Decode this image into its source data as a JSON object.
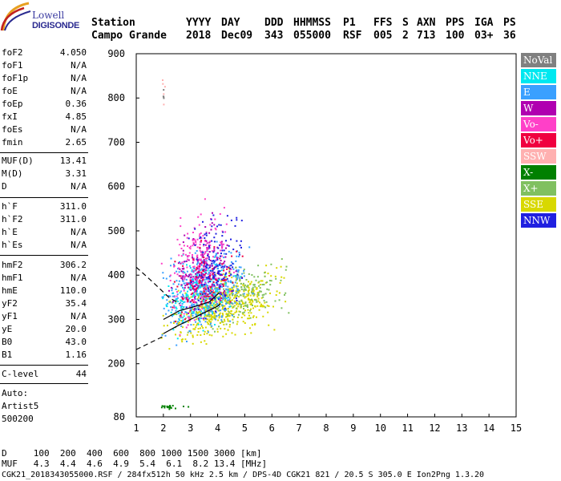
{
  "logo": {
    "line1": "Lowell",
    "line2": "DIGISONDE"
  },
  "header": {
    "line1": [
      "Station",
      "YYYY",
      "DAY",
      "DDD",
      "HHMMSS",
      "P1",
      "FFS",
      "S",
      "AXN",
      "PPS",
      "IGA",
      "PS"
    ],
    "line2": [
      "Campo Grande",
      "2018",
      "Dec09",
      "343",
      "055000",
      "RSF",
      "005",
      "2",
      "713",
      "100",
      "03+",
      "36"
    ]
  },
  "params": {
    "block1": [
      {
        "label": "foF2",
        "value": "4.050"
      },
      {
        "label": "foF1",
        "value": "N/A"
      },
      {
        "label": "foF1p",
        "value": "N/A"
      },
      {
        "label": "foE",
        "value": "N/A"
      },
      {
        "label": "foEp",
        "value": "0.36"
      },
      {
        "label": "fxI",
        "value": "4.85"
      },
      {
        "label": "foEs",
        "value": "N/A"
      },
      {
        "label": "fmin",
        "value": "2.65"
      }
    ],
    "block2": [
      {
        "label": "MUF(D)",
        "value": "13.41"
      },
      {
        "label": "M(D)",
        "value": "3.31"
      },
      {
        "label": "D",
        "value": "N/A"
      }
    ],
    "block3": [
      {
        "label": "h`F",
        "value": "311.0"
      },
      {
        "label": "h`F2",
        "value": "311.0"
      },
      {
        "label": "h`E",
        "value": "N/A"
      },
      {
        "label": "h`Es",
        "value": "N/A"
      }
    ],
    "block4": [
      {
        "label": "hmF2",
        "value": "306.2"
      },
      {
        "label": "hmF1",
        "value": "N/A"
      },
      {
        "label": "hmE",
        "value": "110.0"
      },
      {
        "label": "yF2",
        "value": "35.4"
      },
      {
        "label": "yF1",
        "value": "N/A"
      },
      {
        "label": "yE",
        "value": "20.0"
      },
      {
        "label": "B0",
        "value": "43.0"
      },
      {
        "label": "B1",
        "value": "1.16"
      }
    ],
    "clevel": {
      "label": "C-level",
      "value": "44"
    },
    "scaler": [
      "Auto:",
      "Artist5",
      "500200"
    ]
  },
  "legend": [
    {
      "label": "NoVal",
      "bg": "#808080",
      "fg": "#ffffff"
    },
    {
      "label": "NNE",
      "bg": "#00e8f0",
      "fg": "#ffffff"
    },
    {
      "label": "E",
      "bg": "#3aa0ff",
      "fg": "#ffffff"
    },
    {
      "label": "W",
      "bg": "#b000b0",
      "fg": "#ffffff"
    },
    {
      "label": "Vo-",
      "bg": "#ff40c8",
      "fg": "#ffffff"
    },
    {
      "label": "Vo+",
      "bg": "#f00040",
      "fg": "#ffffff"
    },
    {
      "label": "SSW",
      "bg": "#ffb0b0",
      "fg": "#ffffff"
    },
    {
      "label": "X-",
      "bg": "#008000",
      "fg": "#ffffff"
    },
    {
      "label": "X+",
      "bg": "#80c060",
      "fg": "#ffffff"
    },
    {
      "label": "SSE",
      "bg": "#d8d800",
      "fg": "#ffffff"
    },
    {
      "label": "NNW",
      "bg": "#2020e0",
      "fg": "#ffffff"
    }
  ],
  "bottom": {
    "d_row": "D     100  200  400  600  800 1000 1500 3000 [km]",
    "muf_row": "MUF   4.3  4.4  4.6  4.9  5.4  6.1  8.2 13.4 [MHz]",
    "file_row": "CGK21_2018343055000.RSF / 284fx512h 50 kHz 2.5 km / DPS-4D CGK21 821 / 20.5 S 305.0 E Ion2Png 1.3.20"
  },
  "chart_data": {
    "type": "scatter",
    "xlim": [
      1,
      15
    ],
    "ylim": [
      80,
      900
    ],
    "xticks": [
      1,
      2,
      3,
      4,
      5,
      6,
      7,
      8,
      9,
      10,
      11,
      12,
      13,
      14,
      15
    ],
    "yticks": [
      80,
      200,
      300,
      400,
      500,
      600,
      700,
      800,
      900
    ],
    "clusters": [
      {
        "name": "NoVal",
        "color": "#808080",
        "cx": 1.95,
        "cy": 809,
        "sx": 0.03,
        "sy": 15,
        "n": 4
      },
      {
        "name": "SSW",
        "color": "#ffb0b0",
        "cx": 2.0,
        "cy": 820,
        "sx": 0.04,
        "sy": 20,
        "n": 5
      },
      {
        "name": "SSE",
        "color": "#d8d800",
        "cx": 4.2,
        "cy": 330,
        "sx": 0.9,
        "sy": 30,
        "n": 520
      },
      {
        "name": "X+",
        "color": "#80c060",
        "cx": 4.6,
        "cy": 355,
        "sx": 0.9,
        "sy": 30,
        "n": 220
      },
      {
        "name": "X-",
        "color": "#008000",
        "cx": 2.2,
        "cy": 104,
        "sx": 0.25,
        "sy": 2,
        "n": 22
      },
      {
        "name": "E",
        "color": "#3aa0ff",
        "cx": 3.5,
        "cy": 370,
        "sx": 0.7,
        "sy": 40,
        "n": 420
      },
      {
        "name": "NNE",
        "color": "#00e8f0",
        "cx": 3.3,
        "cy": 360,
        "sx": 0.6,
        "sy": 35,
        "n": 160
      },
      {
        "name": "W",
        "color": "#b000b0",
        "cx": 3.4,
        "cy": 410,
        "sx": 0.5,
        "sy": 45,
        "n": 200
      },
      {
        "name": "Vo-",
        "color": "#ff40c8",
        "cx": 3.3,
        "cy": 420,
        "sx": 0.5,
        "sy": 55,
        "n": 200
      },
      {
        "name": "Vo+",
        "color": "#f00040",
        "cx": 3.6,
        "cy": 390,
        "sx": 0.6,
        "sy": 35,
        "n": 110
      },
      {
        "name": "NNW",
        "color": "#2020e0",
        "cx": 3.9,
        "cy": 430,
        "sx": 0.45,
        "sy": 55,
        "n": 140
      }
    ],
    "profile_curve": [
      [
        2.0,
        268
      ],
      [
        2.5,
        285
      ],
      [
        3.0,
        300
      ],
      [
        3.5,
        315
      ],
      [
        4.0,
        330
      ],
      [
        4.1,
        336
      ]
    ],
    "profile_upper": [
      [
        2.0,
        300
      ],
      [
        2.6,
        320
      ],
      [
        3.2,
        330
      ],
      [
        3.7,
        340
      ],
      [
        4.05,
        360
      ]
    ],
    "dashed_lower": [
      [
        1.0,
        232
      ],
      [
        2.0,
        262
      ]
    ],
    "dashed_upper": [
      [
        1.0,
        418
      ],
      [
        1.6,
        385
      ],
      [
        2.2,
        350
      ],
      [
        2.6,
        335
      ]
    ]
  }
}
